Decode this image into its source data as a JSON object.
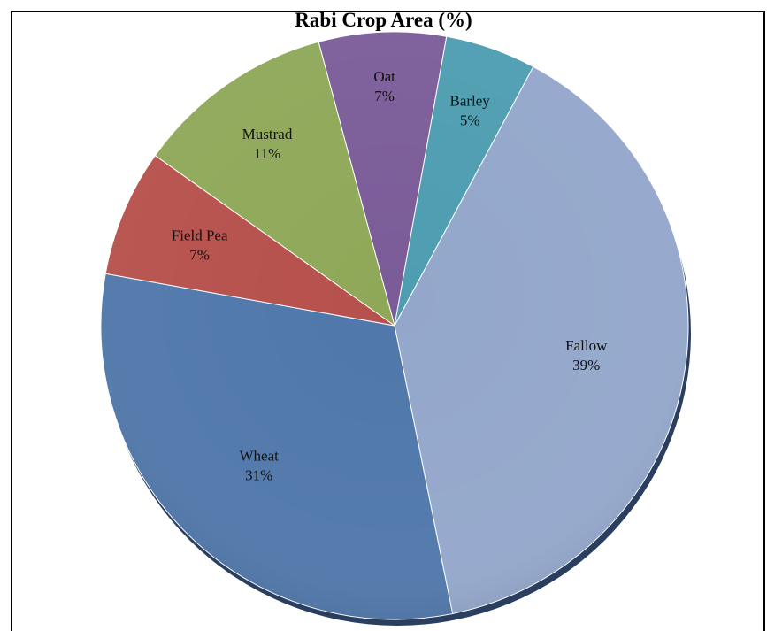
{
  "chart_data": {
    "type": "pie",
    "title": "Rabi Crop Area (%)",
    "categories": [
      "Oat",
      "Barley",
      "Fallow",
      "Wheat",
      "Field Pea",
      "Mustrad"
    ],
    "values": [
      7,
      5,
      39,
      31,
      7,
      11
    ],
    "value_labels": [
      "7%",
      "5%",
      "39%",
      "31%",
      "7%",
      "11%"
    ],
    "colors": [
      "#7b5c98",
      "#4e9db1",
      "#93a7cb",
      "#4f77aa",
      "#b6504c",
      "#8fa858"
    ],
    "legend": "none",
    "data_labels": "inside"
  }
}
